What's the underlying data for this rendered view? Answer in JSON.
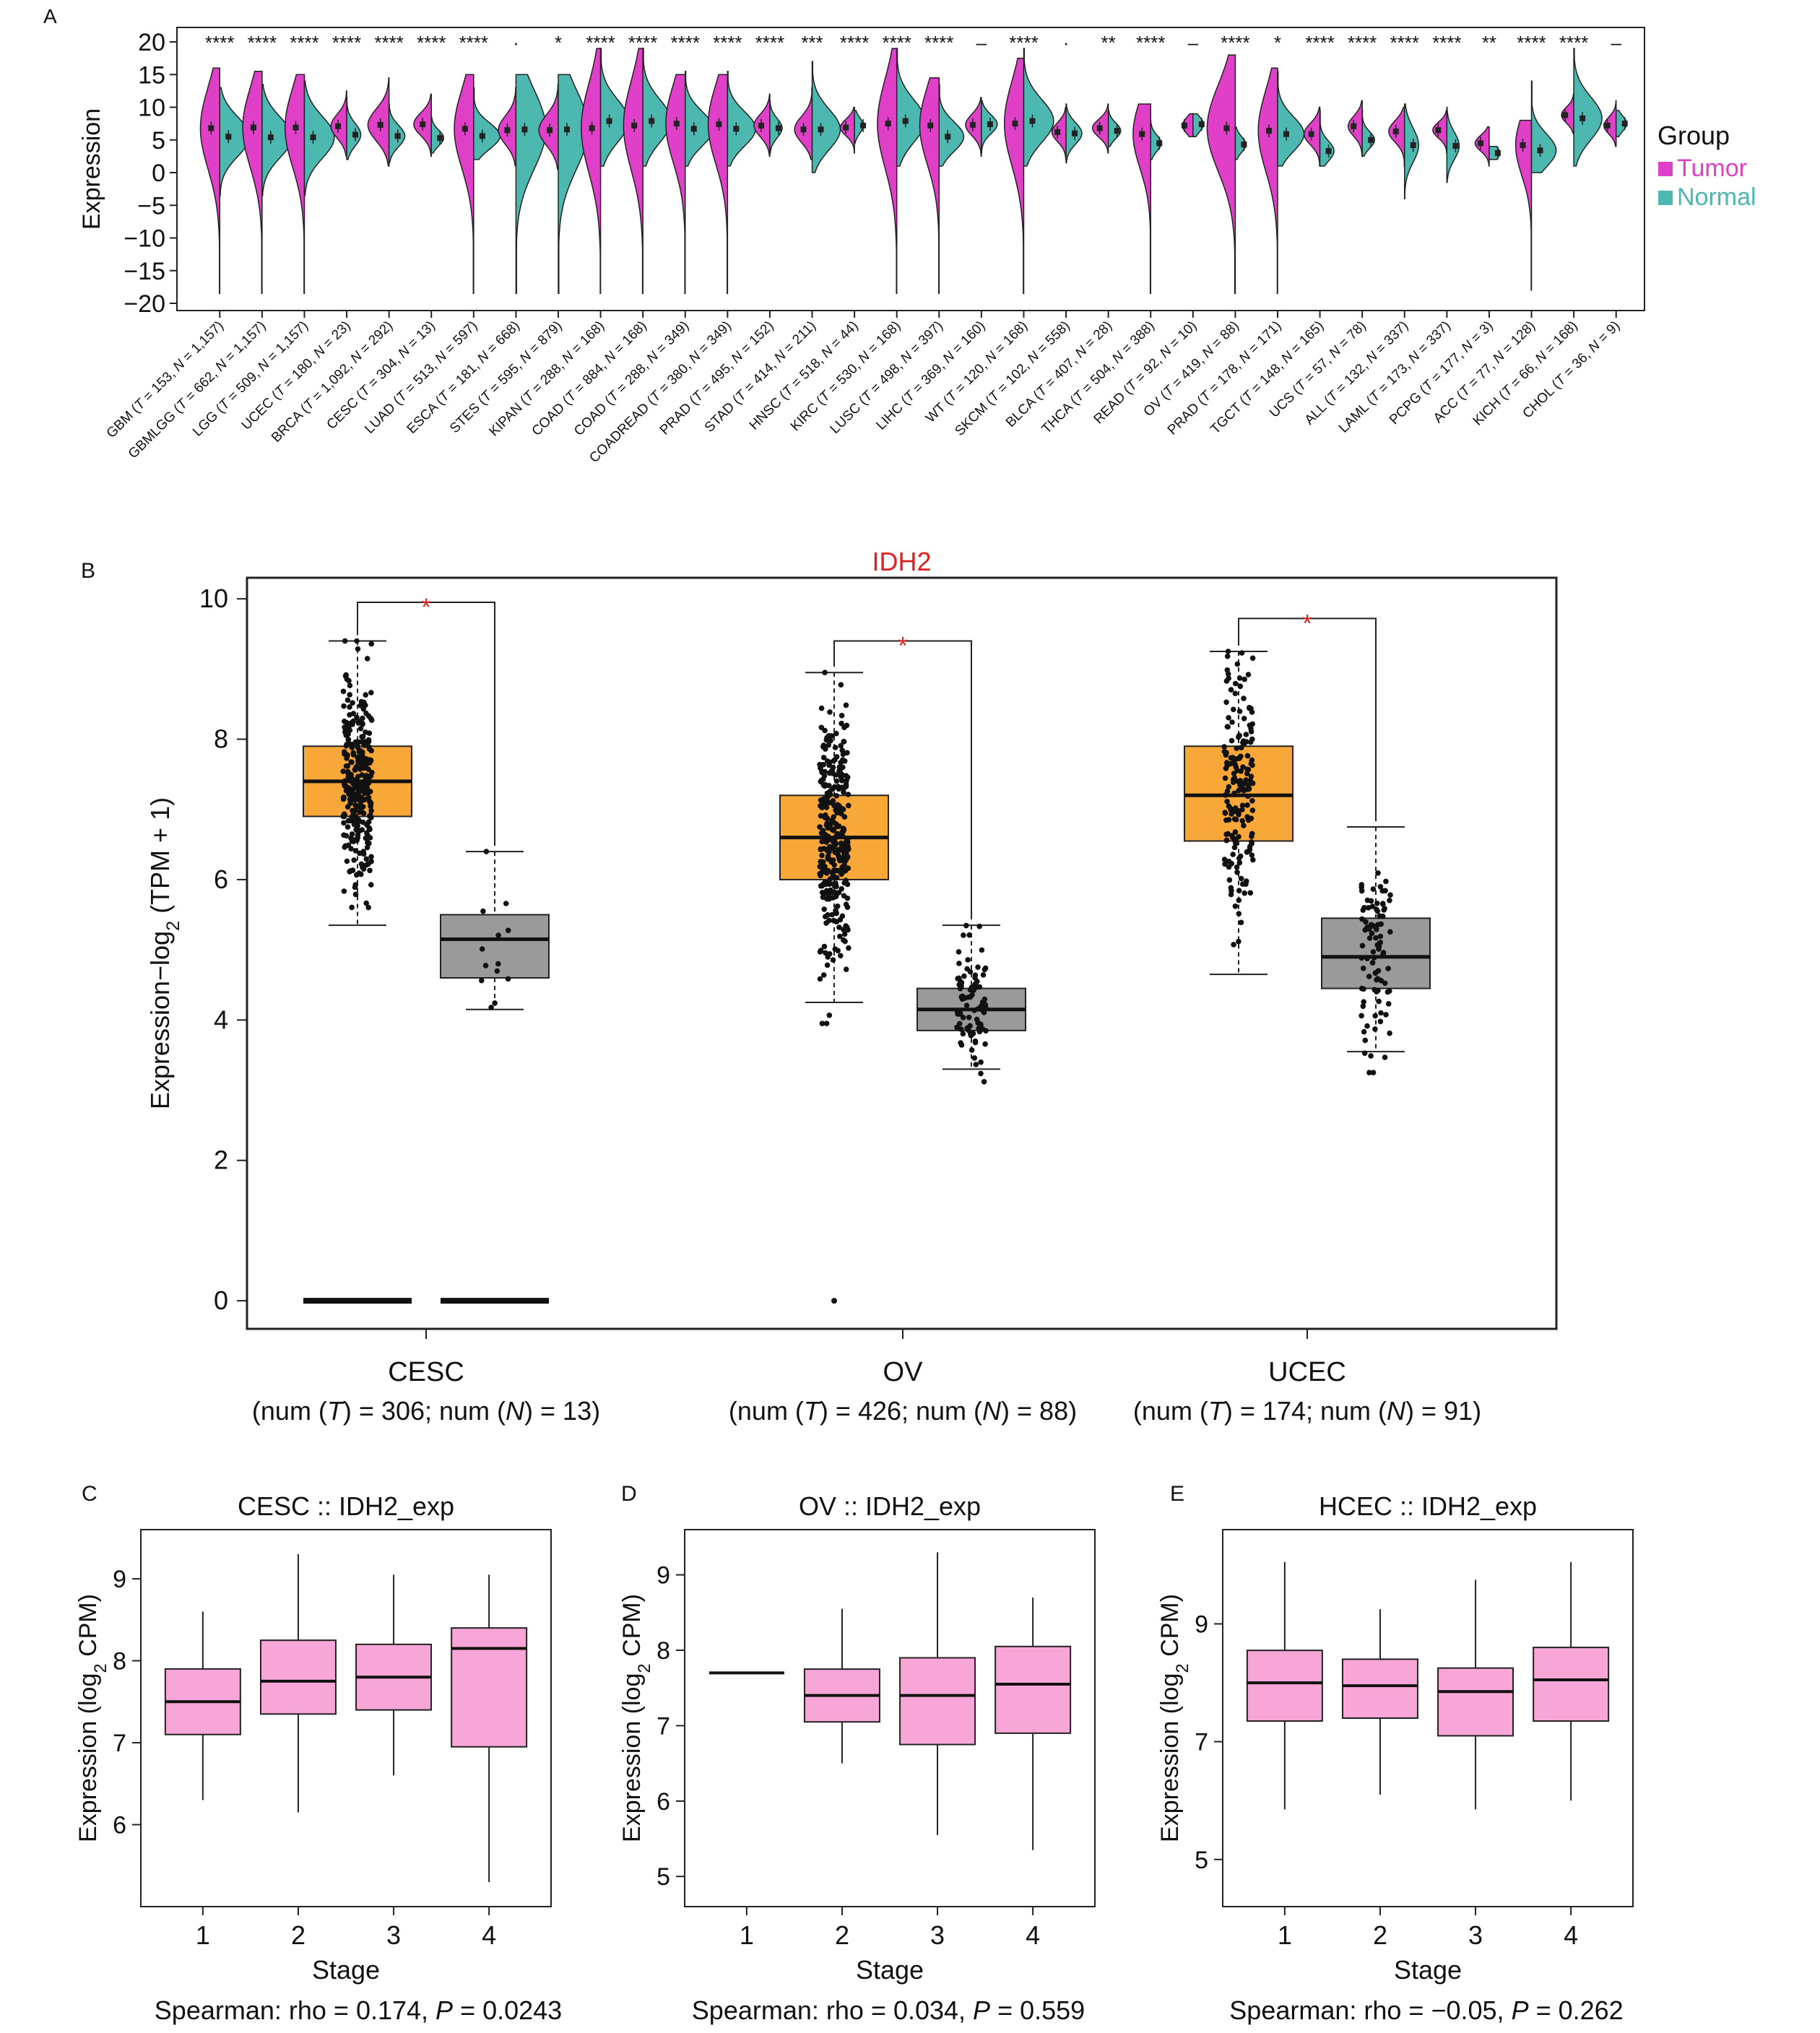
{
  "colors": {
    "tumor": "#e040c8",
    "normal": "#4cb8b0",
    "tumor_box": "#f7a838",
    "normal_box": "#9a9a9a",
    "stage_box": "#f8a6d8",
    "sig": "#e02020",
    "axis": "#222222"
  },
  "chart_data": [
    {
      "panel": "A",
      "type": "violin",
      "title": "",
      "ylabel": "Expression",
      "ylim": [
        -20,
        20
      ],
      "yticks": [
        20,
        15,
        10,
        5,
        0,
        -5,
        -10,
        -15,
        -20
      ],
      "ytick_labels": [
        "20",
        "15",
        "10",
        "5",
        "0",
        "−5",
        "−10",
        "−15",
        "−20"
      ],
      "legend": {
        "title": "Group",
        "entries": [
          "Tumor",
          "Normal"
        ],
        "placement": "right"
      },
      "categories": [
        {
          "label": "GBM (T = 153, N = 1,157)",
          "sig": "****",
          "tumor": {
            "median": 6.8,
            "lo": -18.5,
            "hi": 16.0,
            "width": 0.55
          },
          "normal": {
            "median": 5.5,
            "lo": -3.5,
            "hi": 13.0,
            "width": 0.85
          }
        },
        {
          "label": "GBMLGG (T = 662, N = 1,157)",
          "sig": "****",
          "tumor": {
            "median": 6.9,
            "lo": -18.5,
            "hi": 15.5,
            "width": 0.55
          },
          "normal": {
            "median": 5.4,
            "lo": -3.5,
            "hi": 13.5,
            "width": 0.85
          }
        },
        {
          "label": "LGG (T = 509, N = 1,157)",
          "sig": "****",
          "tumor": {
            "median": 6.9,
            "lo": -18.5,
            "hi": 15.0,
            "width": 0.55
          },
          "normal": {
            "median": 5.4,
            "lo": -3.5,
            "hi": 14.0,
            "width": 0.85
          }
        },
        {
          "label": "UCEC (T = 180, N = 23)",
          "sig": "****",
          "tumor": {
            "median": 7.1,
            "lo": 2.5,
            "hi": 12.5,
            "width": 0.45
          },
          "normal": {
            "median": 5.8,
            "lo": 2.0,
            "hi": 11.5,
            "width": 0.4
          }
        },
        {
          "label": "BRCA (T = 1,092, N = 292)",
          "sig": "****",
          "tumor": {
            "median": 7.3,
            "lo": 1.0,
            "hi": 14.5,
            "width": 0.6
          },
          "normal": {
            "median": 5.6,
            "lo": 1.5,
            "hi": 10.5,
            "width": 0.45
          }
        },
        {
          "label": "CESC (T = 304, N = 13)",
          "sig": "****",
          "tumor": {
            "median": 7.4,
            "lo": 2.5,
            "hi": 12.0,
            "width": 0.5
          },
          "normal": {
            "median": 5.3,
            "lo": 3.0,
            "hi": 8.5,
            "width": 0.35
          }
        },
        {
          "label": "LUAD (T = 513, N = 597)",
          "sig": "****",
          "tumor": {
            "median": 6.7,
            "lo": -18.5,
            "hi": 15.0,
            "width": 0.55
          },
          "normal": {
            "median": 5.6,
            "lo": 2.0,
            "hi": 13.0,
            "width": 0.75
          }
        },
        {
          "label": "ESCA (T = 181, N = 668)",
          "sig": "·",
          "tumor": {
            "median": 6.5,
            "lo": 1.0,
            "hi": 13.0,
            "width": 0.5
          },
          "normal": {
            "median": 6.6,
            "lo": -18.5,
            "hi": 15.0,
            "width": 0.85
          }
        },
        {
          "label": "STES (T = 595, N = 879)",
          "sig": "*",
          "tumor": {
            "median": 6.5,
            "lo": 0.5,
            "hi": 13.5,
            "width": 0.55
          },
          "normal": {
            "median": 6.6,
            "lo": -18.5,
            "hi": 15.0,
            "width": 0.85
          }
        },
        {
          "label": "KIPAN (T = 288, N = 168)",
          "sig": "****",
          "tumor": {
            "median": 6.8,
            "lo": -18.5,
            "hi": 19.0,
            "width": 0.55
          },
          "normal": {
            "median": 7.9,
            "lo": 1.0,
            "hi": 19.0,
            "width": 0.8
          }
        },
        {
          "label": "COAD (T = 884, N = 168)",
          "sig": "****",
          "tumor": {
            "median": 7.2,
            "lo": -18.5,
            "hi": 19.0,
            "width": 0.55
          },
          "normal": {
            "median": 7.9,
            "lo": 1.0,
            "hi": 19.0,
            "width": 0.8
          }
        },
        {
          "label": "COAD (T = 288, N = 349)",
          "sig": "****",
          "tumor": {
            "median": 7.5,
            "lo": -18.5,
            "hi": 15.0,
            "width": 0.55
          },
          "normal": {
            "median": 6.7,
            "lo": 1.0,
            "hi": 15.5,
            "width": 0.8
          }
        },
        {
          "label": "COADREAD (T = 380, N = 349)",
          "sig": "****",
          "tumor": {
            "median": 7.4,
            "lo": -18.5,
            "hi": 15.0,
            "width": 0.55
          },
          "normal": {
            "median": 6.7,
            "lo": 1.0,
            "hi": 15.5,
            "width": 0.8
          }
        },
        {
          "label": "PRAD (T = 495, N = 152)",
          "sig": "****",
          "tumor": {
            "median": 7.2,
            "lo": 2.5,
            "hi": 12.0,
            "width": 0.45
          },
          "normal": {
            "median": 6.8,
            "lo": 3.0,
            "hi": 11.0,
            "width": 0.35
          }
        },
        {
          "label": "STAD (T = 414, N = 211)",
          "sig": "***",
          "tumor": {
            "median": 6.6,
            "lo": 2.0,
            "hi": 13.0,
            "width": 0.5
          },
          "normal": {
            "median": 6.6,
            "lo": 0.0,
            "hi": 17.0,
            "width": 0.8
          }
        },
        {
          "label": "HNSC (T = 518, N = 44)",
          "sig": "****",
          "tumor": {
            "median": 6.9,
            "lo": 3.0,
            "hi": 10.0,
            "width": 0.4
          },
          "normal": {
            "median": 7.2,
            "lo": 4.5,
            "hi": 9.5,
            "width": 0.25
          }
        },
        {
          "label": "KIRC (T = 530, N = 168)",
          "sig": "****",
          "tumor": {
            "median": 7.5,
            "lo": -18.5,
            "hi": 19.0,
            "width": 0.55
          },
          "normal": {
            "median": 7.9,
            "lo": 1.0,
            "hi": 19.0,
            "width": 0.8
          }
        },
        {
          "label": "LUSC (T = 498, N = 397)",
          "sig": "****",
          "tumor": {
            "median": 7.2,
            "lo": -18.5,
            "hi": 14.5,
            "width": 0.55
          },
          "normal": {
            "median": 5.5,
            "lo": 1.0,
            "hi": 13.5,
            "width": 0.7
          }
        },
        {
          "label": "LIHC (T = 369, N = 160)",
          "sig": "–",
          "tumor": {
            "median": 7.3,
            "lo": 2.5,
            "hi": 11.5,
            "width": 0.45
          },
          "normal": {
            "median": 7.4,
            "lo": 3.0,
            "hi": 11.0,
            "width": 0.45
          }
        },
        {
          "label": "WT (T = 120, N = 168)",
          "sig": "****",
          "tumor": {
            "median": 7.5,
            "lo": -18.5,
            "hi": 17.5,
            "width": 0.55
          },
          "normal": {
            "median": 7.9,
            "lo": 1.0,
            "hi": 19.0,
            "width": 0.85
          }
        },
        {
          "label": "SKCM (T = 102, N = 558)",
          "sig": "·",
          "tumor": {
            "median": 6.2,
            "lo": 2.0,
            "hi": 10.0,
            "width": 0.4
          },
          "normal": {
            "median": 6.0,
            "lo": 1.5,
            "hi": 10.5,
            "width": 0.45
          }
        },
        {
          "label": "BLCA (T = 407, N = 28)",
          "sig": "**",
          "tumor": {
            "median": 6.8,
            "lo": 3.0,
            "hi": 10.5,
            "width": 0.45
          },
          "normal": {
            "median": 6.4,
            "lo": 4.0,
            "hi": 9.5,
            "width": 0.35
          }
        },
        {
          "label": "THCA (T = 504, N = 388)",
          "sig": "****",
          "tumor": {
            "median": 5.9,
            "lo": -18.5,
            "hi": 10.5,
            "width": 0.5
          },
          "normal": {
            "median": 4.5,
            "lo": 2.0,
            "hi": 8.0,
            "width": 0.3
          }
        },
        {
          "label": "READ (T = 92, N = 10)",
          "sig": "–",
          "tumor": {
            "median": 7.2,
            "lo": 5.5,
            "hi": 9.0,
            "width": 0.3
          },
          "normal": {
            "median": 7.4,
            "lo": 5.5,
            "hi": 9.0,
            "width": 0.3
          }
        },
        {
          "label": "OV (T = 419, N = 88)",
          "sig": "****",
          "tumor": {
            "median": 6.8,
            "lo": -18.5,
            "hi": 18.0,
            "width": 0.8
          },
          "normal": {
            "median": 4.3,
            "lo": 2.0,
            "hi": 7.0,
            "width": 0.3
          }
        },
        {
          "label": "PRAD (T = 178, N = 171)",
          "sig": "*",
          "tumor": {
            "median": 6.4,
            "lo": -18.5,
            "hi": 16.0,
            "width": 0.55
          },
          "normal": {
            "median": 5.9,
            "lo": 1.0,
            "hi": 15.5,
            "width": 0.75
          }
        },
        {
          "label": "TGCT (T = 148, N = 165)",
          "sig": "****",
          "tumor": {
            "median": 5.9,
            "lo": 1.0,
            "hi": 10.0,
            "width": 0.45
          },
          "normal": {
            "median": 3.3,
            "lo": 1.0,
            "hi": 9.5,
            "width": 0.4
          }
        },
        {
          "label": "UCS (T = 57, N = 78)",
          "sig": "****",
          "tumor": {
            "median": 7.1,
            "lo": 2.5,
            "hi": 11.0,
            "width": 0.4
          },
          "normal": {
            "median": 5.0,
            "lo": 2.5,
            "hi": 9.5,
            "width": 0.35
          }
        },
        {
          "label": "ALL (T = 132, N = 337)",
          "sig": "****",
          "tumor": {
            "median": 6.3,
            "lo": 1.0,
            "hi": 10.0,
            "width": 0.45
          },
          "normal": {
            "median": 4.2,
            "lo": -4.0,
            "hi": 10.5,
            "width": 0.4
          }
        },
        {
          "label": "LAML (T = 173, N = 337)",
          "sig": "****",
          "tumor": {
            "median": 6.5,
            "lo": 3.0,
            "hi": 9.5,
            "width": 0.4
          },
          "normal": {
            "median": 4.1,
            "lo": -1.5,
            "hi": 10.0,
            "width": 0.35
          }
        },
        {
          "label": "PCPG (T = 177, N = 3)",
          "sig": "**",
          "tumor": {
            "median": 4.5,
            "lo": 1.0,
            "hi": 7.0,
            "width": 0.4
          },
          "normal": {
            "median": 3.0,
            "lo": 2.0,
            "hi": 4.0,
            "width": 0.3
          }
        },
        {
          "label": "ACC (T = 77, N = 128)",
          "sig": "****",
          "tumor": {
            "median": 4.2,
            "lo": -18.0,
            "hi": 8.0,
            "width": 0.45
          },
          "normal": {
            "median": 3.4,
            "lo": 0.0,
            "hi": 14.0,
            "width": 0.7
          }
        },
        {
          "label": "KICH (T = 66, N = 168)",
          "sig": "****",
          "tumor": {
            "median": 8.8,
            "lo": 6.0,
            "hi": 12.0,
            "width": 0.35
          },
          "normal": {
            "median": 8.3,
            "lo": 1.0,
            "hi": 19.0,
            "width": 0.8
          }
        },
        {
          "label": "CHOL (T = 36, N = 9)",
          "sig": "–",
          "tumor": {
            "median": 7.2,
            "lo": 4.0,
            "hi": 11.0,
            "width": 0.35
          },
          "normal": {
            "median": 7.5,
            "lo": 5.5,
            "hi": 9.5,
            "width": 0.3
          }
        }
      ]
    },
    {
      "panel": "B",
      "type": "box",
      "title": "IDH2",
      "ylabel": "Expression−log2 (TPM + 1)",
      "ylim": [
        -0.4,
        10.3
      ],
      "yticks": [
        0,
        2,
        4,
        6,
        8,
        10
      ],
      "sig_marks": [
        "*",
        "*",
        "*"
      ],
      "groups": [
        {
          "name": "CESC",
          "sub": "(num (T) = 306; num (N) = 13)",
          "tumor": {
            "q1": 6.9,
            "median": 7.4,
            "q3": 7.9,
            "lo": 5.35,
            "hi": 9.4,
            "n_points": 306
          },
          "normal": {
            "q1": 4.6,
            "median": 5.15,
            "q3": 5.5,
            "lo": 4.15,
            "hi": 6.4,
            "n_points": 13
          }
        },
        {
          "name": "OV",
          "sub": "(num (T) = 426; num (N) = 88)",
          "tumor": {
            "q1": 6.0,
            "median": 6.6,
            "q3": 7.2,
            "lo": 4.25,
            "hi": 8.95,
            "n_points": 426
          },
          "normal": {
            "q1": 3.85,
            "median": 4.15,
            "q3": 4.45,
            "lo": 3.3,
            "hi": 5.35,
            "n_points": 88
          }
        },
        {
          "name": "UCEC",
          "sub": "(num (T) = 174; num (N) = 91)",
          "tumor": {
            "q1": 6.55,
            "median": 7.2,
            "q3": 7.9,
            "lo": 4.65,
            "hi": 9.25,
            "n_points": 174
          },
          "normal": {
            "q1": 4.45,
            "median": 4.9,
            "q3": 5.45,
            "lo": 3.55,
            "hi": 6.75,
            "n_points": 91
          }
        }
      ]
    },
    {
      "panel": "C",
      "type": "box",
      "title": "CESC :: IDH2_exp",
      "xlabel": "Stage",
      "ylabel": "Expression (log2 CPM)",
      "ylim": [
        5.0,
        9.6
      ],
      "yticks": [
        6,
        7,
        8,
        9
      ],
      "categories": [
        "1",
        "2",
        "3",
        "4"
      ],
      "boxes": [
        {
          "lo": 6.3,
          "q1": 7.1,
          "median": 7.5,
          "q3": 7.9,
          "hi": 8.6
        },
        {
          "lo": 6.15,
          "q1": 7.35,
          "median": 7.75,
          "q3": 8.25,
          "hi": 9.3
        },
        {
          "lo": 6.6,
          "q1": 7.4,
          "median": 7.8,
          "q3": 8.2,
          "hi": 9.05
        },
        {
          "lo": 5.3,
          "q1": 6.95,
          "median": 8.15,
          "q3": 8.4,
          "hi": 9.05
        }
      ],
      "footer": "Spearman: rho = 0.174, P = 0.0243"
    },
    {
      "panel": "D",
      "type": "box",
      "title": "OV :: IDH2_exp",
      "xlabel": "Stage",
      "ylabel": "Expression (log2 CPM)",
      "ylim": [
        4.6,
        9.6
      ],
      "yticks": [
        5,
        6,
        7,
        8,
        9
      ],
      "categories": [
        "1",
        "2",
        "3",
        "4"
      ],
      "boxes": [
        {
          "lo": 7.7,
          "q1": 7.7,
          "median": 7.7,
          "q3": 7.7,
          "hi": 7.7
        },
        {
          "lo": 6.5,
          "q1": 7.05,
          "median": 7.4,
          "q3": 7.75,
          "hi": 8.55
        },
        {
          "lo": 5.55,
          "q1": 6.75,
          "median": 7.4,
          "q3": 7.9,
          "hi": 9.3
        },
        {
          "lo": 5.35,
          "q1": 6.9,
          "median": 7.55,
          "q3": 8.05,
          "hi": 8.7
        }
      ],
      "footer": "Spearman: rho = 0.034, P = 0.559"
    },
    {
      "panel": "E",
      "type": "box",
      "title": "HCEC :: IDH2_exp",
      "xlabel": "Stage",
      "ylabel": "Expression (log2 CPM)",
      "ylim": [
        4.2,
        10.6
      ],
      "yticks": [
        5,
        7,
        9
      ],
      "categories": [
        "1",
        "2",
        "3",
        "4"
      ],
      "boxes": [
        {
          "lo": 5.85,
          "q1": 7.35,
          "median": 8.0,
          "q3": 8.55,
          "hi": 10.05
        },
        {
          "lo": 6.1,
          "q1": 7.4,
          "median": 7.95,
          "q3": 8.4,
          "hi": 9.25
        },
        {
          "lo": 5.85,
          "q1": 7.1,
          "median": 7.85,
          "q3": 8.25,
          "hi": 9.75
        },
        {
          "lo": 6.0,
          "q1": 7.35,
          "median": 8.05,
          "q3": 8.6,
          "hi": 10.05
        }
      ],
      "footer": "Spearman: rho = −0.05, P = 0.262"
    }
  ]
}
